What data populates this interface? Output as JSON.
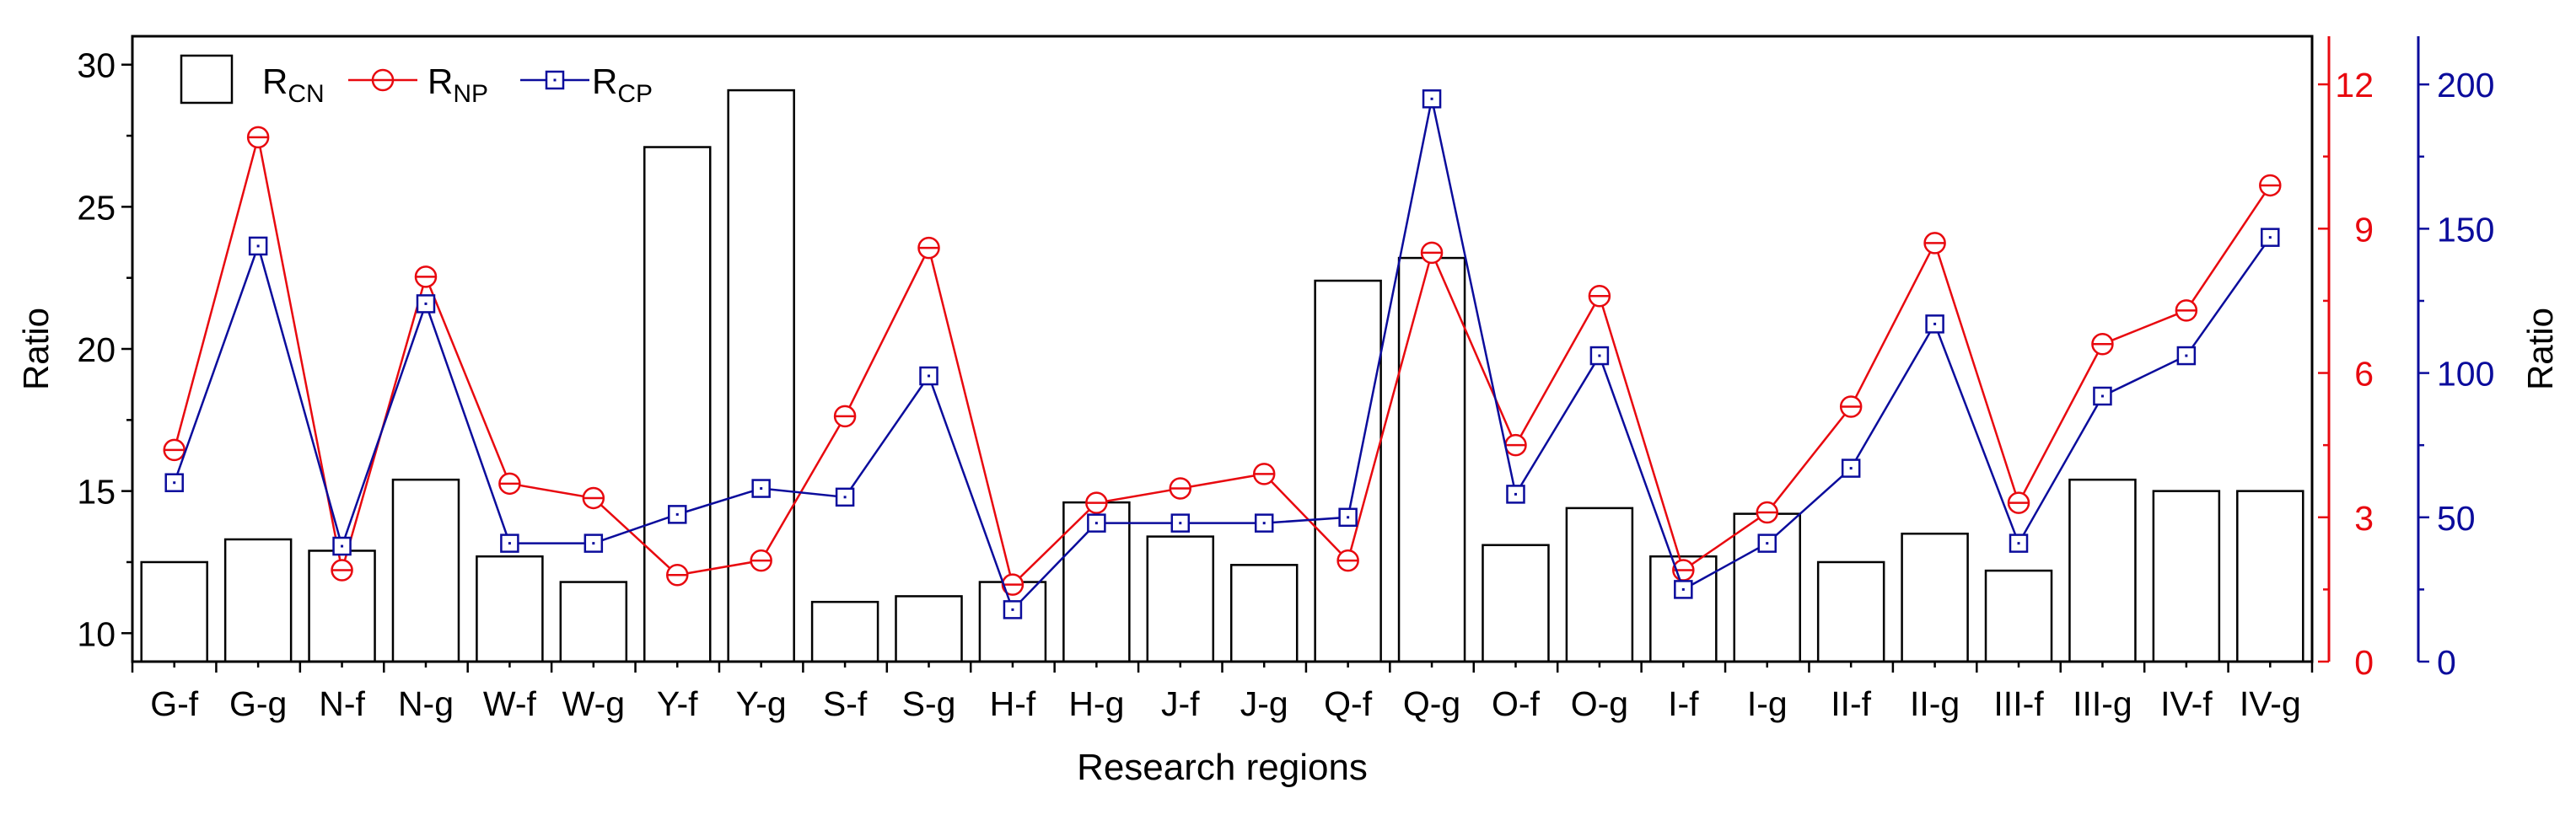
{
  "chart_data": {
    "type": "bar+line",
    "title": "",
    "xlabel": "Research regions",
    "ylabel_left": "Ratio",
    "ylabel_right": "Ratio",
    "categories": [
      "G-f",
      "G-g",
      "N-f",
      "N-g",
      "W-f",
      "W-g",
      "Y-f",
      "Y-g",
      "S-f",
      "S-g",
      "H-f",
      "H-g",
      "J-f",
      "J-g",
      "Q-f",
      "Q-g",
      "O-f",
      "O-g",
      "I-f",
      "I-g",
      "II-f",
      "II-g",
      "III-f",
      "III-g",
      "IV-f",
      "IV-g"
    ],
    "axes": {
      "left": {
        "min": 9,
        "max": 31,
        "ticks": [
          10,
          15,
          20,
          25,
          30
        ],
        "tick_labels": [
          "10",
          "15",
          "20",
          "25",
          "30"
        ],
        "color": "#000000"
      },
      "right1": {
        "min": 0,
        "max": 13,
        "ticks": [
          0,
          3,
          6,
          9,
          12
        ],
        "tick_labels": [
          "0",
          "3",
          "6",
          "9",
          "12"
        ],
        "color": "#e8090f"
      },
      "right2": {
        "min": 0,
        "max": 216.7,
        "ticks": [
          0,
          50,
          100,
          150,
          200
        ],
        "tick_labels": [
          "0",
          "50",
          "100",
          "150",
          "200"
        ],
        "color": "#0b0c9c"
      }
    },
    "legend_position": "top-left",
    "series": [
      {
        "name": "R",
        "subscript": "CN",
        "kind": "bar",
        "axis": "left",
        "color": "#000000",
        "values": [
          12.5,
          13.3,
          12.9,
          15.4,
          12.7,
          11.8,
          27.1,
          29.1,
          11.1,
          11.3,
          11.8,
          14.6,
          13.4,
          12.4,
          22.4,
          23.2,
          13.1,
          14.4,
          12.7,
          14.2,
          12.5,
          13.5,
          12.2,
          15.4,
          15.0,
          15.0
        ]
      },
      {
        "name": "R",
        "subscript": "NP",
        "kind": "line",
        "marker": "circle",
        "axis": "right1",
        "color": "#e8090f",
        "values": [
          4.4,
          10.9,
          1.9,
          8.0,
          3.7,
          3.4,
          1.8,
          2.1,
          5.1,
          8.6,
          1.6,
          3.3,
          3.6,
          3.9,
          2.1,
          8.5,
          4.5,
          7.6,
          1.9,
          3.1,
          5.3,
          8.7,
          3.3,
          6.6,
          7.3,
          9.9
        ]
      },
      {
        "name": "R",
        "subscript": "CP",
        "kind": "line",
        "marker": "square",
        "axis": "right2",
        "color": "#0b0c9c",
        "values": [
          62,
          144,
          40,
          124,
          41,
          41,
          51,
          60,
          57,
          99,
          18,
          48,
          48,
          48,
          50,
          195,
          58,
          106,
          25,
          41,
          67,
          117,
          41,
          92,
          106,
          147
        ]
      }
    ]
  }
}
